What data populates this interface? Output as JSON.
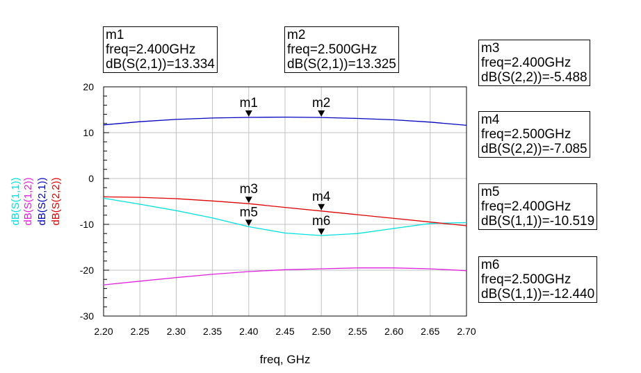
{
  "chart_data": {
    "type": "line",
    "xlabel": "freq, GHz",
    "xlim": [
      2.2,
      2.7
    ],
    "ylim": [
      -30,
      20
    ],
    "x_ticks": [
      2.2,
      2.25,
      2.3,
      2.35,
      2.4,
      2.45,
      2.5,
      2.55,
      2.6,
      2.65,
      2.7
    ],
    "x_tick_labels": [
      "2.20",
      "2.25",
      "2.30",
      "2.35",
      "2.40",
      "2.45",
      "2.50",
      "2.55",
      "2.60",
      "2.65",
      "2.70"
    ],
    "y_ticks": [
      20,
      10,
      0,
      -10,
      -20,
      -30
    ],
    "y_tick_labels": [
      "20",
      "10",
      "0",
      "-10",
      "-20",
      "-30"
    ],
    "grid": true,
    "legend": "left",
    "x": [
      2.2,
      2.25,
      2.3,
      2.35,
      2.4,
      2.45,
      2.5,
      2.55,
      2.6,
      2.65,
      2.7
    ],
    "series": [
      {
        "name": "dB(S(1,1))",
        "color": "#00e0e0",
        "values": [
          -4.3,
          -5.6,
          -7.0,
          -8.6,
          -10.519,
          -11.9,
          -12.44,
          -12.0,
          -10.9,
          -9.8,
          -9.6
        ]
      },
      {
        "name": "dB(S(1,2))",
        "color": "#e020e0",
        "values": [
          -23.2,
          -22.4,
          -21.6,
          -20.9,
          -20.3,
          -19.9,
          -19.7,
          -19.5,
          -19.5,
          -19.7,
          -20.1
        ]
      },
      {
        "name": "dB(S(2,1))",
        "color": "#0000c0",
        "values": [
          11.7,
          12.4,
          12.9,
          13.2,
          13.334,
          13.4,
          13.325,
          13.1,
          12.8,
          12.3,
          11.6
        ]
      },
      {
        "name": "dB(S(2,2))",
        "color": "#e00000",
        "values": [
          -4.0,
          -4.1,
          -4.4,
          -4.9,
          -5.488,
          -6.3,
          -7.085,
          -7.9,
          -8.7,
          -9.5,
          -10.3
        ]
      }
    ],
    "markers": [
      {
        "id": "m1",
        "x": 2.4,
        "y": 13.334,
        "series": "dB(S(2,1))"
      },
      {
        "id": "m2",
        "x": 2.5,
        "y": 13.325,
        "series": "dB(S(2,1))"
      },
      {
        "id": "m3",
        "x": 2.4,
        "y": -5.488,
        "series": "dB(S(2,2))"
      },
      {
        "id": "m4",
        "x": 2.5,
        "y": -7.085,
        "series": "dB(S(2,2))"
      },
      {
        "id": "m5",
        "x": 2.4,
        "y": -10.519,
        "series": "dB(S(1,1))"
      },
      {
        "id": "m6",
        "x": 2.5,
        "y": -12.44,
        "series": "dB(S(1,1))"
      }
    ]
  },
  "marker_boxes": {
    "m1": {
      "name": "m1",
      "freq": "freq=2.400GHz",
      "value": "dB(S(2,1))=13.334"
    },
    "m2": {
      "name": "m2",
      "freq": "freq=2.500GHz",
      "value": "dB(S(2,1))=13.325"
    },
    "m3": {
      "name": "m3",
      "freq": "freq=2.400GHz",
      "value": "dB(S(2,2))=-5.488"
    },
    "m4": {
      "name": "m4",
      "freq": "freq=2.500GHz",
      "value": "dB(S(2,2))=-7.085"
    },
    "m5": {
      "name": "m5",
      "freq": "freq=2.400GHz",
      "value": "dB(S(1,1))=-10.519"
    },
    "m6": {
      "name": "m6",
      "freq": "freq=2.500GHz",
      "value": "dB(S(1,1))=-12.440"
    }
  }
}
